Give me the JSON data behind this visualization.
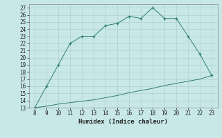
{
  "x": [
    8,
    9,
    10,
    11,
    12,
    13,
    14,
    15,
    16,
    17,
    18,
    19,
    20,
    21,
    22,
    23
  ],
  "y_upper": [
    13,
    16,
    19,
    22,
    23,
    23,
    24.5,
    24.8,
    25.8,
    25.5,
    27,
    25.5,
    25.5,
    23,
    20.5,
    17.5
  ],
  "y_lower": [
    13,
    13.2,
    13.5,
    13.7,
    13.9,
    14.1,
    14.4,
    14.7,
    15.1,
    15.4,
    15.7,
    16.1,
    16.4,
    16.7,
    17.0,
    17.5
  ],
  "line_color": "#2e7d6e",
  "bg_color": "#c8e8e8",
  "grid_color": "#b0d0d0",
  "xlabel": "Humidex (Indice chaleur)",
  "xlim": [
    7.5,
    23.5
  ],
  "ylim": [
    13,
    27.5
  ],
  "xticks": [
    8,
    9,
    10,
    11,
    12,
    13,
    14,
    15,
    16,
    17,
    18,
    19,
    20,
    21,
    22,
    23
  ],
  "yticks": [
    13,
    14,
    15,
    16,
    17,
    18,
    19,
    20,
    21,
    22,
    23,
    24,
    25,
    26,
    27
  ],
  "tick_fontsize": 5.5,
  "xlabel_fontsize": 6.5
}
